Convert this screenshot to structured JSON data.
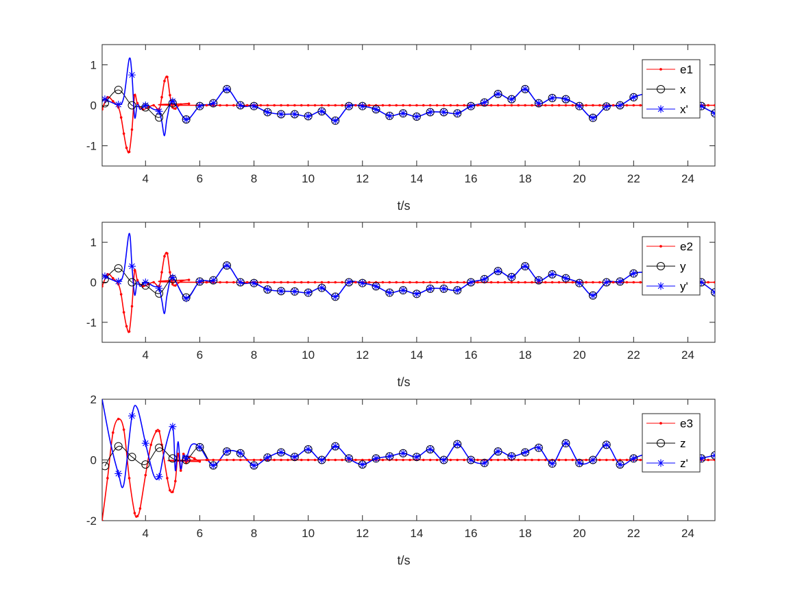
{
  "chart_data": [
    {
      "type": "line",
      "title": "",
      "xlabel": "t/s",
      "ylabel": "",
      "xlim": [
        2.4,
        25
      ],
      "ylim": [
        -1.5,
        1.5
      ],
      "xticks": [
        4,
        6,
        8,
        10,
        12,
        14,
        16,
        18,
        20,
        22,
        24
      ],
      "yticks": [
        -1,
        0,
        1
      ],
      "legend_position": "top-right",
      "series": [
        {
          "name": "e1",
          "color": "#ff0000",
          "marker": "dot",
          "x": [
            2.4,
            2.6,
            2.8,
            3.0,
            3.1,
            3.2,
            3.3,
            3.4,
            3.5,
            3.6,
            3.7,
            3.9,
            4.1,
            4.3,
            4.5,
            4.6,
            4.7,
            4.8,
            4.9,
            5.0,
            5.1,
            5.3,
            5.6,
            6.0,
            25.0
          ],
          "y": [
            -0.1,
            0.2,
            0.1,
            -0.05,
            -0.3,
            -0.7,
            -1.05,
            -1.15,
            -0.6,
            0.25,
            0.05,
            -0.1,
            -0.05,
            0.0,
            -0.1,
            0.2,
            0.6,
            0.7,
            0.25,
            -0.05,
            -0.08,
            0.02,
            0.04,
            0.0,
            0.0
          ]
        },
        {
          "name": "x",
          "color": "#000000",
          "marker": "circle",
          "x": [
            2.5,
            3.0,
            3.5,
            4.0,
            4.5,
            5.0,
            5.5,
            6.0,
            6.5,
            7.0,
            7.5,
            8.0,
            8.5,
            9.0,
            9.5,
            10.0,
            10.5,
            11.0,
            11.5,
            12.0,
            12.5,
            13.0,
            13.5,
            14.0,
            14.5,
            15.0,
            15.5,
            16.0,
            16.5,
            17.0,
            17.5,
            18.0,
            18.5,
            19.0,
            19.5,
            20.0,
            20.5,
            21.0,
            21.5,
            22.0,
            22.5,
            23.0,
            23.5,
            24.0,
            24.5,
            25.0
          ],
          "y": [
            0.05,
            0.38,
            0.0,
            -0.05,
            -0.3,
            0.05,
            -0.35,
            -0.02,
            0.05,
            0.4,
            0.0,
            -0.02,
            -0.17,
            -0.22,
            -0.22,
            -0.27,
            -0.15,
            -0.38,
            -0.02,
            -0.02,
            -0.1,
            -0.26,
            -0.2,
            -0.28,
            -0.17,
            -0.17,
            -0.2,
            -0.02,
            0.07,
            0.28,
            0.15,
            0.4,
            0.05,
            0.18,
            0.15,
            -0.02,
            -0.31,
            -0.03,
            0.0,
            0.2,
            0.28,
            0.18,
            0.25,
            0.22,
            -0.02,
            -0.2
          ]
        },
        {
          "name": "x'",
          "color": "#0000ff",
          "marker": "star",
          "x": [
            2.5,
            3.0,
            3.2,
            3.4,
            3.5,
            3.6,
            3.7,
            3.8,
            4.0,
            4.3,
            4.5,
            4.6,
            4.7,
            4.8,
            5.0,
            5.5,
            6.0,
            6.5,
            7.0,
            7.5,
            8.0,
            8.5,
            9.0,
            9.5,
            10.0,
            10.5,
            11.0,
            11.5,
            12.0,
            12.5,
            13.0,
            13.5,
            14.0,
            14.5,
            15.0,
            15.5,
            16.0,
            16.5,
            17.0,
            17.5,
            18.0,
            18.5,
            19.0,
            19.5,
            20.0,
            20.5,
            21.0,
            21.5,
            22.0,
            22.5,
            23.0,
            23.5,
            24.0,
            24.5,
            25.0
          ],
          "y": [
            0.15,
            0.02,
            0.2,
            1.15,
            0.75,
            -0.3,
            0.05,
            -0.1,
            0.0,
            -0.1,
            -0.15,
            -0.4,
            -0.75,
            -0.3,
            0.1,
            -0.35,
            -0.02,
            0.05,
            0.4,
            0.0,
            -0.02,
            -0.17,
            -0.22,
            -0.22,
            -0.27,
            -0.15,
            -0.38,
            -0.02,
            -0.02,
            -0.1,
            -0.26,
            -0.2,
            -0.28,
            -0.17,
            -0.17,
            -0.2,
            -0.02,
            0.07,
            0.28,
            0.15,
            0.4,
            0.05,
            0.18,
            0.15,
            -0.02,
            -0.31,
            -0.03,
            0.0,
            0.2,
            0.28,
            0.18,
            0.25,
            0.22,
            -0.02,
            -0.2
          ]
        }
      ]
    },
    {
      "type": "line",
      "title": "",
      "xlabel": "t/s",
      "ylabel": "",
      "xlim": [
        2.4,
        25
      ],
      "ylim": [
        -1.5,
        1.5
      ],
      "xticks": [
        4,
        6,
        8,
        10,
        12,
        14,
        16,
        18,
        20,
        22,
        24
      ],
      "yticks": [
        -1,
        0,
        1
      ],
      "legend_position": "top-right",
      "series": [
        {
          "name": "e2",
          "color": "#ff0000",
          "marker": "dot",
          "x": [
            2.4,
            2.6,
            2.8,
            3.0,
            3.1,
            3.2,
            3.3,
            3.4,
            3.5,
            3.6,
            3.7,
            3.9,
            4.1,
            4.3,
            4.5,
            4.6,
            4.7,
            4.8,
            4.9,
            5.0,
            5.1,
            5.3,
            5.6,
            6.0,
            25.0
          ],
          "y": [
            -0.1,
            0.2,
            0.1,
            -0.05,
            -0.3,
            -0.75,
            -1.1,
            -1.23,
            -0.6,
            0.3,
            0.05,
            -0.1,
            -0.05,
            0.0,
            -0.1,
            0.25,
            0.65,
            0.72,
            0.25,
            -0.05,
            -0.08,
            0.02,
            0.06,
            0.0,
            0.0
          ]
        },
        {
          "name": "y",
          "color": "#000000",
          "marker": "circle",
          "x": [
            2.5,
            3.0,
            3.5,
            4.0,
            4.5,
            5.0,
            5.5,
            6.0,
            6.5,
            7.0,
            7.5,
            8.0,
            8.5,
            9.0,
            9.5,
            10.0,
            10.5,
            11.0,
            11.5,
            12.0,
            12.5,
            13.0,
            13.5,
            14.0,
            14.5,
            15.0,
            15.5,
            16.0,
            16.5,
            17.0,
            17.5,
            18.0,
            18.5,
            19.0,
            19.5,
            20.0,
            20.5,
            21.0,
            21.5,
            22.0,
            22.5,
            23.0,
            23.5,
            24.0,
            24.5,
            25.0
          ],
          "y": [
            0.08,
            0.35,
            0.0,
            -0.08,
            -0.28,
            0.08,
            -0.38,
            0.02,
            0.05,
            0.42,
            0.0,
            -0.02,
            -0.18,
            -0.22,
            -0.23,
            -0.26,
            -0.14,
            -0.36,
            0.0,
            -0.02,
            -0.1,
            -0.26,
            -0.2,
            -0.29,
            -0.16,
            -0.16,
            -0.2,
            0.0,
            0.08,
            0.28,
            0.13,
            0.4,
            0.05,
            0.2,
            0.1,
            -0.02,
            -0.33,
            0.0,
            0.02,
            0.22,
            0.25,
            0.2,
            0.22,
            0.2,
            0.0,
            -0.25
          ]
        },
        {
          "name": "y'",
          "color": "#0000ff",
          "marker": "star",
          "x": [
            2.5,
            3.0,
            3.2,
            3.4,
            3.5,
            3.6,
            3.7,
            3.8,
            4.0,
            4.3,
            4.5,
            4.6,
            4.7,
            4.8,
            5.0,
            5.5,
            6.0,
            6.5,
            7.0,
            7.5,
            8.0,
            8.5,
            9.0,
            9.5,
            10.0,
            10.5,
            11.0,
            11.5,
            12.0,
            12.5,
            13.0,
            13.5,
            14.0,
            14.5,
            15.0,
            15.5,
            16.0,
            16.5,
            17.0,
            17.5,
            18.0,
            18.5,
            19.0,
            19.5,
            20.0,
            20.5,
            21.0,
            21.5,
            22.0,
            22.5,
            23.0,
            23.5,
            24.0,
            24.5,
            25.0
          ],
          "y": [
            0.15,
            0.02,
            0.25,
            1.22,
            0.4,
            -0.32,
            0.05,
            -0.1,
            0.0,
            -0.1,
            -0.15,
            -0.45,
            -0.78,
            -0.3,
            0.12,
            -0.4,
            0.02,
            0.05,
            0.42,
            0.0,
            -0.02,
            -0.18,
            -0.22,
            -0.23,
            -0.26,
            -0.14,
            -0.36,
            0.0,
            -0.02,
            -0.1,
            -0.26,
            -0.2,
            -0.29,
            -0.16,
            -0.16,
            -0.2,
            0.0,
            0.08,
            0.28,
            0.13,
            0.4,
            0.05,
            0.2,
            0.1,
            -0.02,
            -0.33,
            0.0,
            0.02,
            0.22,
            0.25,
            0.2,
            0.22,
            0.2,
            0.0,
            -0.25
          ]
        }
      ]
    },
    {
      "type": "line",
      "title": "",
      "xlabel": "t/s",
      "ylabel": "",
      "xlim": [
        2.4,
        25
      ],
      "ylim": [
        -2,
        2
      ],
      "xticks": [
        4,
        6,
        8,
        10,
        12,
        14,
        16,
        18,
        20,
        22,
        24
      ],
      "yticks": [
        -2,
        0,
        2
      ],
      "legend_position": "top-right",
      "series": [
        {
          "name": "e3",
          "color": "#ff0000",
          "marker": "dot",
          "x": [
            2.4,
            2.6,
            2.8,
            3.0,
            3.2,
            3.4,
            3.6,
            3.7,
            3.8,
            4.0,
            4.2,
            4.4,
            4.5,
            4.6,
            4.8,
            4.9,
            5.0,
            5.1,
            5.2,
            5.3,
            5.4,
            5.5,
            5.6,
            5.8,
            6.0,
            6.3,
            25.0
          ],
          "y": [
            -2.0,
            -0.6,
            0.9,
            1.35,
            1.0,
            -0.6,
            -1.75,
            -1.85,
            -1.6,
            -0.5,
            0.5,
            0.95,
            0.95,
            0.5,
            -0.6,
            -1.0,
            -1.05,
            -0.7,
            0.2,
            -0.35,
            0.2,
            -0.1,
            0.1,
            0.05,
            -0.05,
            0.0,
            0.0
          ]
        },
        {
          "name": "z",
          "color": "#000000",
          "marker": "circle",
          "x": [
            2.5,
            3.0,
            3.5,
            4.0,
            4.5,
            5.0,
            5.5,
            6.0,
            6.5,
            7.0,
            7.5,
            8.0,
            8.5,
            9.0,
            9.5,
            10.0,
            10.5,
            11.0,
            11.5,
            12.0,
            12.5,
            13.0,
            13.5,
            14.0,
            14.5,
            15.0,
            15.5,
            16.0,
            16.5,
            17.0,
            17.5,
            18.0,
            18.5,
            19.0,
            19.5,
            20.0,
            20.5,
            21.0,
            21.5,
            22.0,
            22.5,
            23.0,
            23.5,
            24.0,
            24.5,
            25.0
          ],
          "y": [
            -0.2,
            0.45,
            0.1,
            -0.15,
            0.4,
            0.05,
            0.0,
            0.42,
            -0.18,
            0.28,
            0.22,
            -0.18,
            0.08,
            0.25,
            0.1,
            0.35,
            0.0,
            0.45,
            0.05,
            -0.15,
            0.05,
            0.12,
            0.22,
            0.1,
            0.35,
            0.0,
            0.52,
            0.0,
            -0.1,
            0.28,
            0.12,
            0.25,
            0.4,
            -0.12,
            0.55,
            -0.1,
            0.0,
            0.5,
            -0.15,
            0.05,
            0.2,
            0.12,
            0.45,
            -0.12,
            0.05,
            0.15
          ]
        },
        {
          "name": "z'",
          "color": "#0000ff",
          "marker": "star",
          "x": [
            2.4,
            2.7,
            3.0,
            3.2,
            3.5,
            3.7,
            4.0,
            4.3,
            4.5,
            4.7,
            5.0,
            5.1,
            5.2,
            5.3,
            5.4,
            5.5,
            5.7,
            6.0,
            6.5,
            7.0,
            7.5,
            8.0,
            8.5,
            9.0,
            9.5,
            10.0,
            10.5,
            11.0,
            11.5,
            12.0,
            12.5,
            13.0,
            13.5,
            14.0,
            14.5,
            15.0,
            15.5,
            16.0,
            16.5,
            17.0,
            17.5,
            18.0,
            18.5,
            19.0,
            19.5,
            20.0,
            20.5,
            21.0,
            21.5,
            22.0,
            22.5,
            23.0,
            23.5,
            24.0,
            24.5,
            25.0
          ],
          "y": [
            2.0,
            0.6,
            -0.45,
            -0.8,
            1.45,
            1.7,
            0.55,
            -0.5,
            -0.55,
            0.3,
            1.1,
            -0.35,
            0.6,
            -0.3,
            0.2,
            0.05,
            0.5,
            0.42,
            -0.18,
            0.28,
            0.22,
            -0.18,
            0.08,
            0.25,
            0.1,
            0.35,
            0.0,
            0.45,
            0.05,
            -0.15,
            0.05,
            0.12,
            0.22,
            0.1,
            0.35,
            0.0,
            0.52,
            0.0,
            -0.1,
            0.28,
            0.12,
            0.25,
            0.4,
            -0.12,
            0.55,
            -0.1,
            0.0,
            0.5,
            -0.15,
            0.05,
            0.2,
            0.12,
            0.45,
            -0.12,
            0.05,
            0.15
          ]
        }
      ]
    }
  ]
}
